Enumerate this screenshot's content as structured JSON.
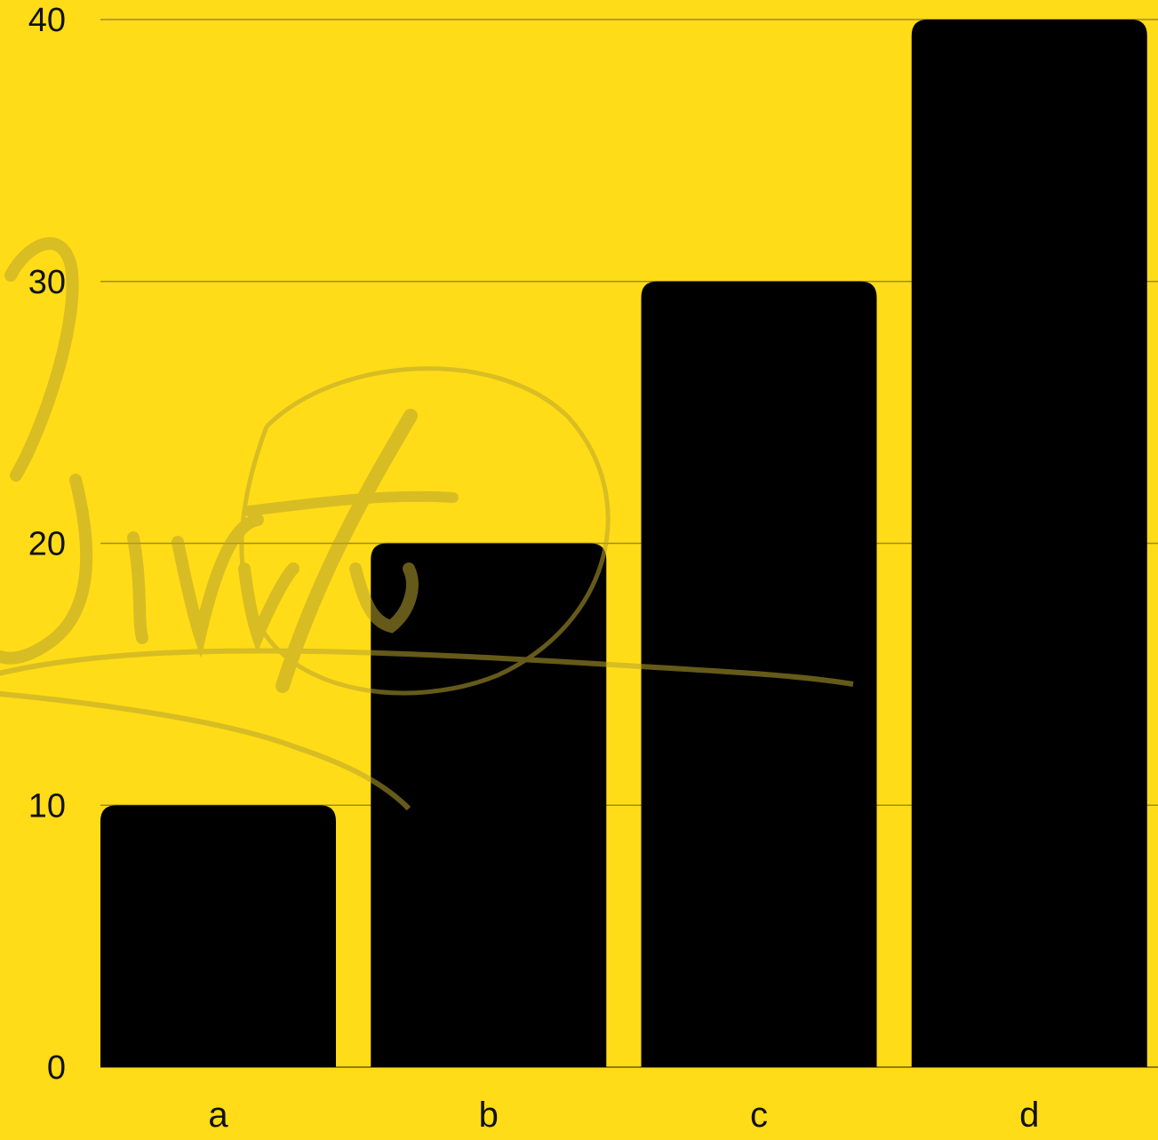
{
  "colors": {
    "background": "#FFDC17",
    "bar": "#000000",
    "gridline": "#A38C1A",
    "text": "#111111",
    "watermark": "#B8A42E"
  },
  "watermark": {
    "kind": "handwritten signature",
    "text": "Jiritti"
  },
  "chart_data": {
    "type": "bar",
    "title": "",
    "xlabel": "",
    "ylabel": "",
    "categories": [
      "a",
      "b",
      "c",
      "d"
    ],
    "values": [
      10,
      20,
      30,
      40
    ],
    "ylim": [
      0,
      40
    ],
    "yticks": [
      0,
      10,
      20,
      30,
      40
    ],
    "grid": true,
    "legend": "none"
  }
}
